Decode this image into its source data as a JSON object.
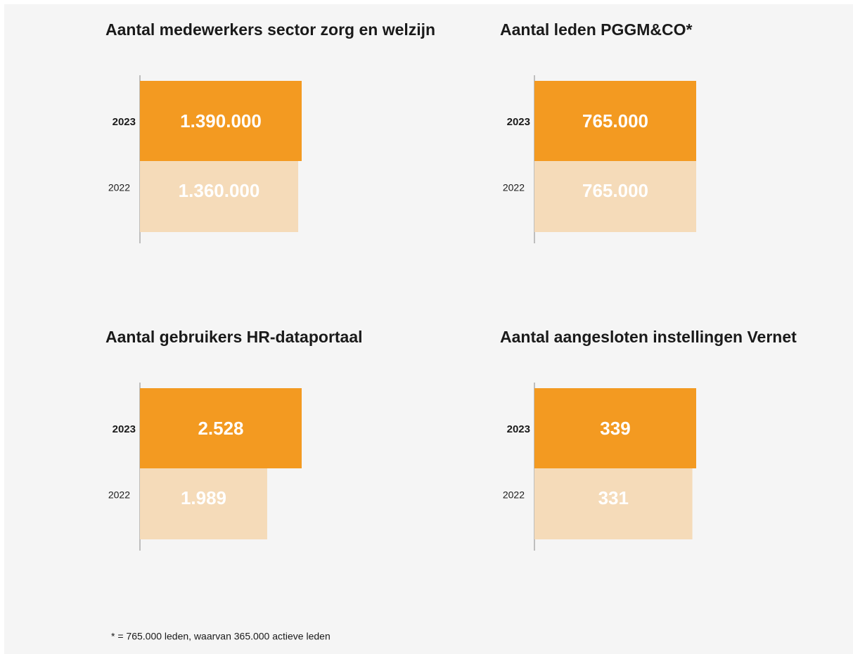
{
  "chart_data": [
    {
      "type": "bar",
      "title": "Aantal medewerkers sector zorg en welzijn",
      "categories": [
        "2023",
        "2022"
      ],
      "values": [
        1390000,
        1360000
      ],
      "value_labels": [
        "1.390.000",
        "1.360.000"
      ],
      "colors": [
        "#f39a21",
        "#f5dbb9"
      ]
    },
    {
      "type": "bar",
      "title": "Aantal leden PGGM&CO*",
      "categories": [
        "2023",
        "2022"
      ],
      "values": [
        765000,
        765000
      ],
      "value_labels": [
        "765.000",
        "765.000"
      ],
      "colors": [
        "#f39a21",
        "#f5dbb9"
      ]
    },
    {
      "type": "bar",
      "title": "Aantal gebruikers HR-dataportaal",
      "categories": [
        "2023",
        "2022"
      ],
      "values": [
        2528,
        1989
      ],
      "value_labels": [
        "2.528",
        "1.989"
      ],
      "colors": [
        "#f39a21",
        "#f5dbb9"
      ]
    },
    {
      "type": "bar",
      "title": "Aantal aangesloten instellingen Vernet",
      "categories": [
        "2023",
        "2022"
      ],
      "values": [
        339,
        331
      ],
      "value_labels": [
        "339",
        "331"
      ],
      "colors": [
        "#f39a21",
        "#f5dbb9"
      ]
    }
  ],
  "footnote": "* = 765.000 leden, waarvan 365.000 actieve leden"
}
